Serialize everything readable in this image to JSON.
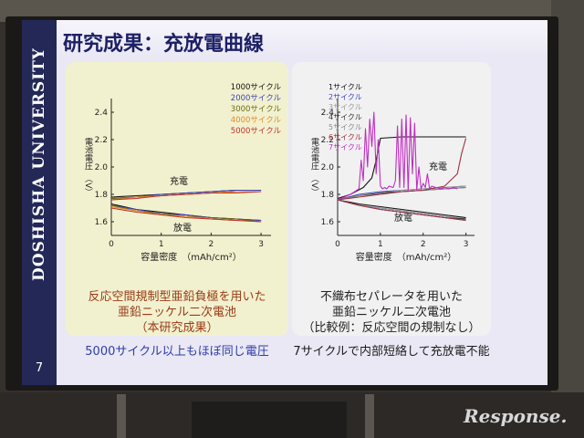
{
  "slide": {
    "title": "研究成果：充放電曲線",
    "university": "DOSHISHA UNIVERSITY",
    "page_number": "7",
    "left_caption": [
      "反応空間規制型亜鉛負極を用いた",
      "亜鉛ニッケル二次電池",
      "（本研究成果）"
    ],
    "left_note": "5000サイクル以上もほぼ同じ電圧",
    "right_caption": [
      "不織布セパレータを用いた",
      "亜鉛ニッケル二次電池",
      "（比較例：反応空間の規制なし）"
    ],
    "right_note": "7サイクルで内部短絡して充放電不能"
  },
  "watermark": "Response.",
  "chart_data": [
    {
      "type": "line",
      "xlabel": "容量密度　（mAh/cm²）",
      "ylabel": "電池電圧　（V）",
      "xlim": [
        0,
        3.2
      ],
      "ylim": [
        1.5,
        2.5
      ],
      "x_ticks": [
        "0",
        "1",
        "2",
        "3"
      ],
      "y_ticks": [
        "1.6",
        "1.8",
        "2.0",
        "2.2",
        "2.4"
      ],
      "annotations": {
        "charge": "充電",
        "discharge": "放電"
      },
      "legend_position": "top-right",
      "series": [
        {
          "name": "1000サイクル",
          "color": "#111111",
          "charge": {
            "x": [
              0,
              0.5,
              1,
              1.5,
              2,
              2.5,
              3
            ],
            "y": [
              1.78,
              1.79,
              1.8,
              1.81,
              1.82,
              1.83,
              1.83
            ]
          },
          "discharge": {
            "x": [
              0,
              0.5,
              1,
              1.5,
              2,
              2.5,
              3
            ],
            "y": [
              1.73,
              1.69,
              1.67,
              1.65,
              1.63,
              1.62,
              1.61
            ]
          }
        },
        {
          "name": "2000サイクル",
          "color": "#3a45c2",
          "charge": {
            "x": [
              0,
              0.5,
              1,
              1.5,
              2,
              2.5,
              3
            ],
            "y": [
              1.77,
              1.78,
              1.8,
              1.81,
              1.82,
              1.83,
              1.83
            ]
          },
          "discharge": {
            "x": [
              0,
              0.5,
              1,
              1.5,
              2,
              2.5,
              3
            ],
            "y": [
              1.72,
              1.69,
              1.66,
              1.65,
              1.63,
              1.62,
              1.61
            ]
          }
        },
        {
          "name": "3000サイクル",
          "color": "#6a6a1a",
          "charge": {
            "x": [
              0,
              0.5,
              1,
              1.5,
              2,
              2.5,
              3
            ],
            "y": [
              1.77,
              1.78,
              1.79,
              1.8,
              1.81,
              1.82,
              1.82
            ]
          },
          "discharge": {
            "x": [
              0,
              0.5,
              1,
              1.5,
              2,
              2.5,
              3
            ],
            "y": [
              1.72,
              1.68,
              1.66,
              1.64,
              1.63,
              1.62,
              1.6
            ]
          }
        },
        {
          "name": "4000サイクル",
          "color": "#e08a2a",
          "charge": {
            "x": [
              0,
              0.5,
              1,
              1.5,
              2,
              2.5,
              3
            ],
            "y": [
              1.76,
              1.78,
              1.79,
              1.8,
              1.81,
              1.82,
              1.82
            ]
          },
          "discharge": {
            "x": [
              0,
              0.5,
              1,
              1.5,
              2,
              2.5,
              3
            ],
            "y": [
              1.71,
              1.68,
              1.65,
              1.64,
              1.62,
              1.61,
              1.6
            ]
          }
        },
        {
          "name": "5000サイクル",
          "color": "#c0302a",
          "charge": {
            "x": [
              0,
              0.5,
              1,
              1.5,
              2,
              2.5,
              3
            ],
            "y": [
              1.76,
              1.77,
              1.79,
              1.8,
              1.81,
              1.81,
              1.82
            ]
          },
          "discharge": {
            "x": [
              0,
              0.5,
              1,
              1.5,
              2,
              2.5,
              3
            ],
            "y": [
              1.7,
              1.67,
              1.65,
              1.63,
              1.62,
              1.61,
              1.6
            ]
          }
        }
      ]
    },
    {
      "type": "line",
      "xlabel": "容量密度　（mAh/cm²）",
      "ylabel": "電池電圧　（V）",
      "xlim": [
        0,
        3.2
      ],
      "ylim": [
        1.5,
        2.5
      ],
      "x_ticks": [
        "0",
        "1",
        "2",
        "3"
      ],
      "y_ticks": [
        "1.6",
        "1.8",
        "2.0",
        "2.2",
        "2.4"
      ],
      "annotations": {
        "charge": "充電",
        "discharge": "放電"
      },
      "legend_position": "top-left",
      "series": [
        {
          "name": "1サイクル",
          "color": "#111111",
          "charge": {
            "x": [
              0,
              0.3,
              0.6,
              0.8,
              0.9,
              1.0,
              1.5,
              2.0,
              2.5,
              3.0
            ],
            "y": [
              1.77,
              1.8,
              1.85,
              1.92,
              2.05,
              2.21,
              2.22,
              2.22,
              2.22,
              2.22
            ]
          },
          "discharge": {
            "x": [
              0,
              0.5,
              1,
              1.5,
              2,
              2.5,
              3
            ],
            "y": [
              1.76,
              1.73,
              1.71,
              1.69,
              1.67,
              1.65,
              1.63
            ]
          }
        },
        {
          "name": "2サイクル",
          "color": "#3a45c2",
          "charge": {
            "x": [
              0,
              0.5,
              1,
              1.5,
              2,
              2.5,
              3
            ],
            "y": [
              1.76,
              1.8,
              1.82,
              1.83,
              1.84,
              1.85,
              1.86
            ]
          },
          "discharge": {
            "x": [
              0,
              0.5,
              1,
              1.5,
              2,
              2.5,
              3
            ],
            "y": [
              1.76,
              1.72,
              1.7,
              1.68,
              1.66,
              1.64,
              1.62
            ]
          }
        },
        {
          "name": "3サイクル",
          "color": "#9a9a9a",
          "charge": {
            "x": [
              0,
              0.5,
              1,
              1.5,
              2,
              2.5,
              3
            ],
            "y": [
              1.76,
              1.79,
              1.81,
              1.83,
              1.84,
              1.85,
              1.86
            ]
          },
          "discharge": {
            "x": [
              0,
              0.5,
              1,
              1.5,
              2,
              2.5,
              3
            ],
            "y": [
              1.76,
              1.72,
              1.7,
              1.68,
              1.66,
              1.64,
              1.62
            ]
          }
        },
        {
          "name": "4サイクル",
          "color": "#333333",
          "charge": {
            "x": [
              0,
              0.5,
              1,
              1.5,
              2,
              2.5,
              3
            ],
            "y": [
              1.76,
              1.79,
              1.81,
              1.82,
              1.83,
              1.84,
              1.85
            ]
          },
          "discharge": {
            "x": [
              0,
              0.5,
              1,
              1.5,
              2,
              2.5,
              3
            ],
            "y": [
              1.76,
              1.72,
              1.69,
              1.67,
              1.65,
              1.63,
              1.62
            ]
          }
        },
        {
          "name": "5サイクル",
          "color": "#8a8a8a",
          "charge": {
            "x": [
              0,
              0.5,
              1,
              1.5,
              2,
              2.5,
              3
            ],
            "y": [
              1.76,
              1.79,
              1.8,
              1.82,
              1.83,
              1.84,
              1.85
            ]
          },
          "discharge": {
            "x": [
              0,
              0.5,
              1,
              1.5,
              2,
              2.5,
              3
            ],
            "y": [
              1.76,
              1.72,
              1.69,
              1.67,
              1.65,
              1.63,
              1.61
            ]
          }
        },
        {
          "name": "6サイクル",
          "color": "#a0303a",
          "charge": {
            "x": [
              0,
              0.5,
              1,
              1.5,
              2,
              2.5,
              2.8,
              2.9,
              3.0
            ],
            "y": [
              1.76,
              1.78,
              1.8,
              1.82,
              1.83,
              1.86,
              1.95,
              2.1,
              2.21
            ]
          },
          "discharge": {
            "x": [
              0,
              0.5,
              1,
              1.5,
              2,
              2.5,
              3
            ],
            "y": [
              1.76,
              1.72,
              1.69,
              1.67,
              1.65,
              1.63,
              1.61
            ]
          }
        },
        {
          "name": "7サイクル",
          "color": "#c02ec0",
          "charge": {
            "x": [
              0,
              0.3,
              0.5,
              0.55,
              0.6,
              0.65,
              0.7,
              0.75,
              0.8,
              0.85,
              0.9,
              0.95,
              1.0,
              1.05,
              1.1,
              1.15,
              1.2,
              1.3,
              1.35,
              1.4,
              1.45,
              1.5,
              1.55,
              1.6,
              1.65,
              1.7,
              1.75,
              1.8,
              1.85,
              1.9,
              1.95,
              2.0,
              2.05,
              2.1,
              2.15,
              2.2,
              2.3,
              2.4,
              2.5,
              2.6,
              2.7,
              2.8
            ],
            "y": [
              1.76,
              1.8,
              1.84,
              2.05,
              1.9,
              2.28,
              2.0,
              2.35,
              2.15,
              2.4,
              1.95,
              2.2,
              1.86,
              1.84,
              1.85,
              1.84,
              1.86,
              1.85,
              1.9,
              2.3,
              1.85,
              2.35,
              1.85,
              2.38,
              1.82,
              2.36,
              1.95,
              2.32,
              1.83,
              2.0,
              1.84,
              1.88,
              1.85,
              1.95,
              1.84,
              1.86,
              1.85,
              1.84,
              1.85,
              1.84,
              1.85,
              1.84
            ]
          },
          "discharge": {
            "x": [],
            "y": []
          }
        }
      ]
    }
  ]
}
